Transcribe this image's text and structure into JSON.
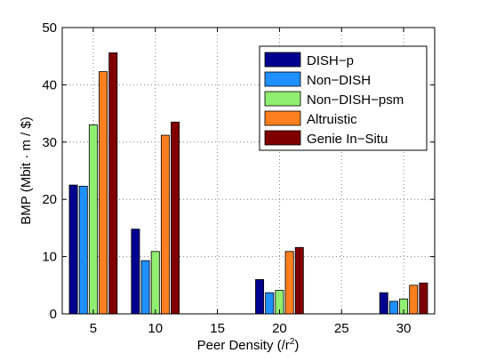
{
  "chart_data": {
    "type": "bar",
    "title": "",
    "xlabel": "Peer Density (/r",
    "xlabel_sup": "2",
    "xlabel_close": ")",
    "ylabel": "BMP (Mbit · m / $)",
    "x_ticks": [
      "5",
      "10",
      "15",
      "20",
      "25",
      "30"
    ],
    "y_ticks": [
      "0",
      "10",
      "20",
      "30",
      "40",
      "50"
    ],
    "xlim": [
      2.5,
      32.5
    ],
    "ylim": [
      0,
      50
    ],
    "grid": true,
    "legend_position": "top-right",
    "categories": [
      5,
      10,
      20,
      30
    ],
    "series": [
      {
        "name": "DISH−p",
        "color": "#00008f",
        "values": [
          22.5,
          14.8,
          6.0,
          3.7
        ]
      },
      {
        "name": "Non−DISH",
        "color": "#1e90ff",
        "values": [
          22.3,
          9.3,
          3.7,
          2.2
        ]
      },
      {
        "name": "Non−DISH−psm",
        "color": "#90ee70",
        "values": [
          33.0,
          10.9,
          4.1,
          2.6
        ]
      },
      {
        "name": "Altruistic",
        "color": "#ff7f1e",
        "values": [
          42.3,
          31.2,
          10.9,
          5.0
        ]
      },
      {
        "name": "Genie In−Situ",
        "color": "#800000",
        "values": [
          45.6,
          33.5,
          11.6,
          5.4
        ]
      }
    ]
  }
}
